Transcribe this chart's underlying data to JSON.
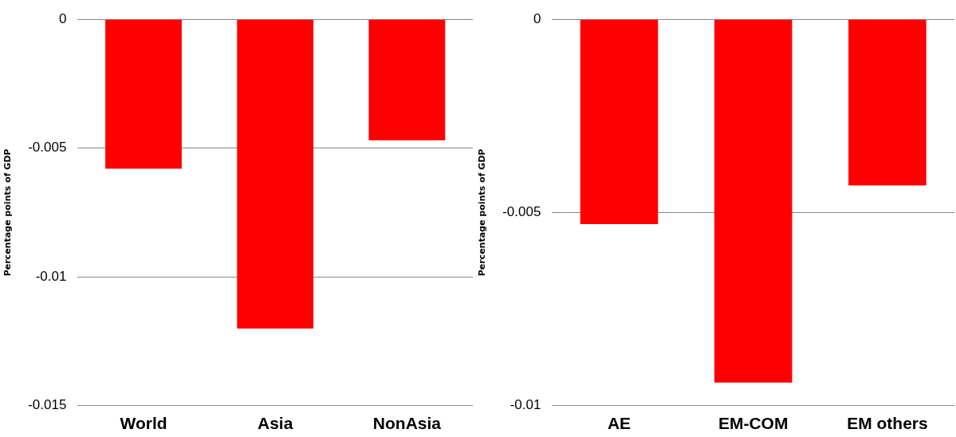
{
  "chart_data": [
    {
      "type": "bar",
      "ylabel": "Percentage points of GDP",
      "categories": [
        "World",
        "Asia",
        "NonAsia"
      ],
      "values": [
        -0.0058,
        -0.012,
        -0.0047
      ],
      "color": "#ff0000",
      "ylim": [
        -0.015,
        0
      ],
      "yticks": [
        -0.015,
        -0.01,
        -0.005,
        0
      ],
      "grid": "y",
      "legend": false
    },
    {
      "type": "bar",
      "ylabel": "Percentage points of GDP",
      "categories": [
        "AE",
        "EM-COM",
        "EM others"
      ],
      "values": [
        -0.0053,
        -0.0094,
        -0.0043
      ],
      "color": "#ff0000",
      "ylim": [
        -0.01,
        0
      ],
      "yticks": [
        -0.01,
        -0.005,
        0
      ],
      "grid": "y",
      "legend": false
    }
  ]
}
